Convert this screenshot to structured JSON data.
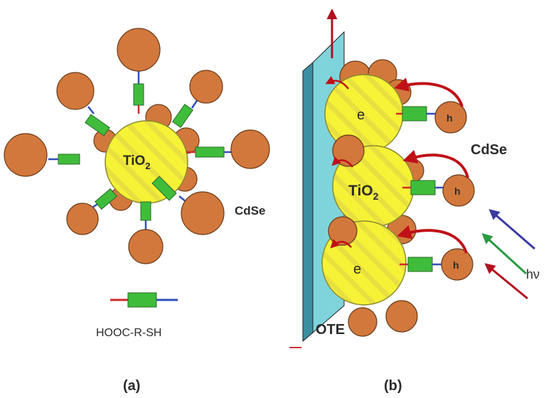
{
  "panel_a": {
    "core_label_main": "TiO",
    "core_label_sub": "2",
    "shell_label": "CdSe",
    "linker_label": "HOOC-R-SH",
    "caption": "(a)"
  },
  "panel_b": {
    "electron_label": "e",
    "hole_label": "h",
    "core_label_main": "TiO",
    "core_label_sub": "2",
    "shell_label": "CdSe",
    "electrode_label": "OTE",
    "light_label": "hν",
    "caption": "(b)"
  },
  "colors": {
    "tio2_yellow": "#f6f236",
    "tio2_edge": "#8a8a30",
    "cdse_orange": "#d2783c",
    "cdse_edge": "#6a3a18",
    "linker_green": "#3fbd3a",
    "linker_blue": "#3050b8",
    "linker_red": "#d02a2a",
    "electrode": "#7fd4dc",
    "arrow_red": "#b01020",
    "arrow_blue": "#3a3aa0",
    "arrow_green": "#2a9a40"
  }
}
